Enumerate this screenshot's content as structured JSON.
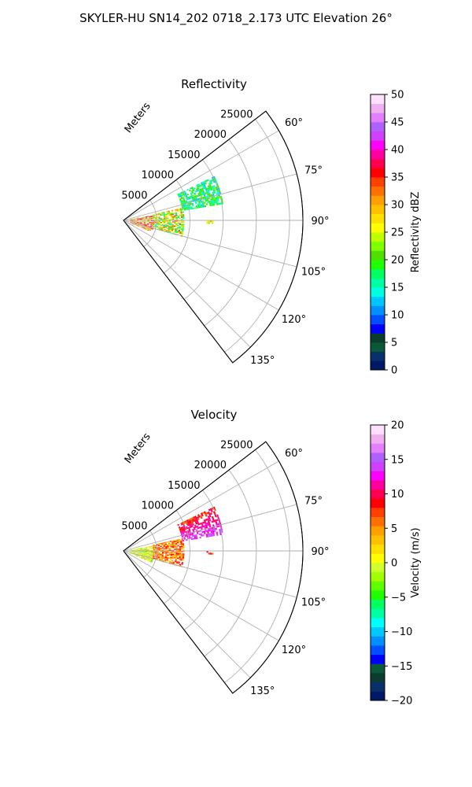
{
  "suptitle": "SKYLER-HU  SN14_202  0718_2.173 UTC Elevation 26°",
  "chart_data": [
    {
      "type": "heatmap",
      "title": "Reflectivity",
      "radial_label": "Meters",
      "radial_ticks": [
        5000,
        10000,
        15000,
        20000,
        25000
      ],
      "angle_ticks": [
        "60°",
        "75°",
        "90°",
        "105°",
        "120°",
        "135°"
      ],
      "angle_range_deg": [
        52.5,
        142.5
      ],
      "range_max_m": 27000,
      "colorbar": {
        "label": "Reflectivity dBZ",
        "range": [
          0,
          50
        ],
        "ticks": [
          0,
          5,
          10,
          15,
          20,
          25,
          30,
          35,
          40,
          45,
          50
        ],
        "colors": [
          "#001a66",
          "#08306b",
          "#0a5a3a",
          "#0b3d2e",
          "#0000ff",
          "#0050ff",
          "#0090ff",
          "#00c8ff",
          "#00ffe0",
          "#00ffa0",
          "#00ff60",
          "#20ff00",
          "#50e000",
          "#80ff00",
          "#c0ff00",
          "#ffff00",
          "#ffe000",
          "#ffc000",
          "#ffa000",
          "#ff7000",
          "#ff4000",
          "#ff0000",
          "#ff0050",
          "#ff00a0",
          "#ff00ff",
          "#d040ff",
          "#b060ff",
          "#e080ff",
          "#f0b0f0",
          "#ffe0ff"
        ]
      },
      "echo_regions": [
        {
          "range_m": [
            1000,
            4500
          ],
          "azimuth_deg": [
            80,
            112
          ],
          "dbz": [
            20,
            42
          ]
        },
        {
          "range_m": [
            4500,
            9000
          ],
          "azimuth_deg": [
            78,
            105
          ],
          "dbz": [
            15,
            35
          ]
        },
        {
          "range_m": [
            9000,
            15000
          ],
          "azimuth_deg": [
            64,
            80
          ],
          "dbz": [
            12,
            22
          ]
        },
        {
          "range_m": [
            12500,
            13500
          ],
          "azimuth_deg": [
            90,
            92
          ],
          "dbz": [
            20,
            32
          ]
        }
      ]
    },
    {
      "type": "heatmap",
      "title": "Velocity",
      "radial_label": "Meters",
      "radial_ticks": [
        5000,
        10000,
        15000,
        20000,
        25000
      ],
      "angle_ticks": [
        "60°",
        "75°",
        "90°",
        "105°",
        "120°",
        "135°"
      ],
      "angle_range_deg": [
        52.5,
        142.5
      ],
      "range_max_m": 27000,
      "colorbar": {
        "label": "Velocity (m/s)",
        "range": [
          -20,
          20
        ],
        "ticks": [
          -20,
          -15,
          -10,
          -5,
          0,
          5,
          10,
          15,
          20
        ],
        "colors": [
          "#001a66",
          "#08306b",
          "#0b3d2e",
          "#0a5a3a",
          "#0000ff",
          "#0050ff",
          "#0090ff",
          "#00c8ff",
          "#00ffff",
          "#00ffa0",
          "#00ff60",
          "#20ff00",
          "#60ff00",
          "#a0ff00",
          "#d0ff30",
          "#ffff00",
          "#ffe000",
          "#ffc000",
          "#ffa000",
          "#ff7000",
          "#ff4000",
          "#ff0000",
          "#ff0050",
          "#ff00a0",
          "#ff00ff",
          "#d040ff",
          "#b060ff",
          "#e080ff",
          "#f0b0f0",
          "#ffe0ff"
        ]
      },
      "echo_regions": [
        {
          "range_m": [
            1000,
            4500
          ],
          "azimuth_deg": [
            80,
            112
          ],
          "velocity_ms": [
            -5,
            5
          ]
        },
        {
          "range_m": [
            4500,
            9000
          ],
          "azimuth_deg": [
            78,
            105
          ],
          "velocity_ms": [
            2,
            10
          ]
        },
        {
          "range_m": [
            9000,
            15000
          ],
          "azimuth_deg": [
            64,
            80
          ],
          "velocity_ms": [
            6,
            16
          ]
        },
        {
          "range_m": [
            12500,
            13500
          ],
          "azimuth_deg": [
            90,
            92
          ],
          "velocity_ms": [
            5,
            10
          ]
        }
      ]
    }
  ]
}
